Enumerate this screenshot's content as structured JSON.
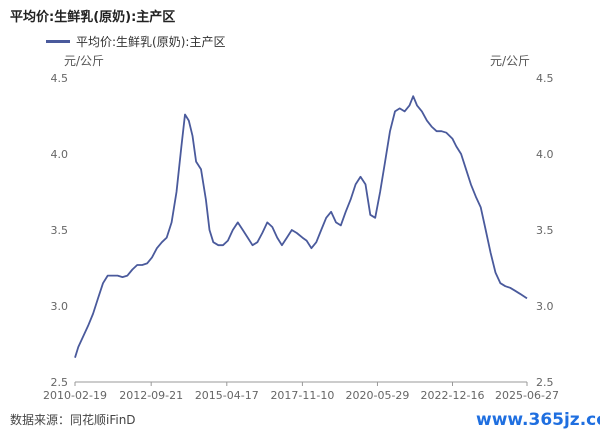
{
  "chart_data": {
    "type": "line",
    "title": "平均价:生鲜乳(原奶):主产区",
    "unit_left": "元/公斤",
    "unit_right": "元/公斤",
    "ylim": [
      2.5,
      4.5
    ],
    "yticks": [
      "2.5",
      "3.0",
      "3.5",
      "4.0",
      "4.5"
    ],
    "xlim": [
      "2010-02-19",
      "2025-06-27"
    ],
    "xticks": [
      "2010-02-19",
      "2012-09-21",
      "2015-04-17",
      "2017-11-10",
      "2020-05-29",
      "2022-12-16",
      "2025-06-27"
    ],
    "grid": false,
    "legend_position": "top-left",
    "source": "数据来源：同花顺iFinD",
    "colors": {
      "line": "#4a5a9c"
    },
    "series": [
      {
        "name": "平均价:生鲜乳(原奶):主产区",
        "points": [
          [
            "2010-02-19",
            2.66
          ],
          [
            "2010-04-01",
            2.73
          ],
          [
            "2010-06-01",
            2.8
          ],
          [
            "2010-08-01",
            2.87
          ],
          [
            "2010-10-01",
            2.95
          ],
          [
            "2010-12-01",
            3.05
          ],
          [
            "2011-02-01",
            3.15
          ],
          [
            "2011-04-01",
            3.2
          ],
          [
            "2011-06-01",
            3.2
          ],
          [
            "2011-08-01",
            3.2
          ],
          [
            "2011-10-01",
            3.19
          ],
          [
            "2011-12-01",
            3.2
          ],
          [
            "2012-02-01",
            3.24
          ],
          [
            "2012-04-01",
            3.27
          ],
          [
            "2012-06-01",
            3.27
          ],
          [
            "2012-08-01",
            3.28
          ],
          [
            "2012-10-01",
            3.32
          ],
          [
            "2012-12-01",
            3.38
          ],
          [
            "2013-02-01",
            3.42
          ],
          [
            "2013-04-01",
            3.45
          ],
          [
            "2013-06-01",
            3.55
          ],
          [
            "2013-08-01",
            3.75
          ],
          [
            "2013-10-01",
            4.05
          ],
          [
            "2013-11-15",
            4.26
          ],
          [
            "2014-01-01",
            4.22
          ],
          [
            "2014-02-15",
            4.12
          ],
          [
            "2014-04-01",
            3.95
          ],
          [
            "2014-06-01",
            3.9
          ],
          [
            "2014-08-01",
            3.7
          ],
          [
            "2014-09-15",
            3.5
          ],
          [
            "2014-11-01",
            3.42
          ],
          [
            "2015-01-01",
            3.4
          ],
          [
            "2015-03-01",
            3.4
          ],
          [
            "2015-05-01",
            3.43
          ],
          [
            "2015-07-01",
            3.5
          ],
          [
            "2015-09-01",
            3.55
          ],
          [
            "2015-11-01",
            3.5
          ],
          [
            "2016-01-01",
            3.45
          ],
          [
            "2016-03-01",
            3.4
          ],
          [
            "2016-05-01",
            3.42
          ],
          [
            "2016-07-01",
            3.48
          ],
          [
            "2016-09-01",
            3.55
          ],
          [
            "2016-11-01",
            3.52
          ],
          [
            "2017-01-01",
            3.45
          ],
          [
            "2017-03-01",
            3.4
          ],
          [
            "2017-05-01",
            3.45
          ],
          [
            "2017-07-01",
            3.5
          ],
          [
            "2017-09-01",
            3.48
          ],
          [
            "2017-11-10",
            3.45
          ],
          [
            "2018-01-01",
            3.43
          ],
          [
            "2018-03-01",
            3.38
          ],
          [
            "2018-05-01",
            3.42
          ],
          [
            "2018-07-01",
            3.5
          ],
          [
            "2018-09-01",
            3.58
          ],
          [
            "2018-11-01",
            3.62
          ],
          [
            "2019-01-01",
            3.55
          ],
          [
            "2019-03-01",
            3.53
          ],
          [
            "2019-05-01",
            3.62
          ],
          [
            "2019-07-01",
            3.7
          ],
          [
            "2019-09-01",
            3.8
          ],
          [
            "2019-11-01",
            3.85
          ],
          [
            "2020-01-01",
            3.8
          ],
          [
            "2020-03-01",
            3.6
          ],
          [
            "2020-05-01",
            3.58
          ],
          [
            "2020-07-01",
            3.75
          ],
          [
            "2020-09-01",
            3.95
          ],
          [
            "2020-11-01",
            4.15
          ],
          [
            "2021-01-01",
            4.28
          ],
          [
            "2021-03-01",
            4.3
          ],
          [
            "2021-05-01",
            4.28
          ],
          [
            "2021-07-01",
            4.32
          ],
          [
            "2021-08-15",
            4.38
          ],
          [
            "2021-10-01",
            4.32
          ],
          [
            "2021-12-01",
            4.28
          ],
          [
            "2022-02-01",
            4.22
          ],
          [
            "2022-04-01",
            4.18
          ],
          [
            "2022-06-01",
            4.15
          ],
          [
            "2022-08-01",
            4.15
          ],
          [
            "2022-10-01",
            4.14
          ],
          [
            "2022-12-16",
            4.1
          ],
          [
            "2023-02-01",
            4.05
          ],
          [
            "2023-04-01",
            4.0
          ],
          [
            "2023-06-01",
            3.9
          ],
          [
            "2023-08-01",
            3.8
          ],
          [
            "2023-10-01",
            3.72
          ],
          [
            "2023-12-01",
            3.65
          ],
          [
            "2024-02-01",
            3.5
          ],
          [
            "2024-04-01",
            3.35
          ],
          [
            "2024-06-01",
            3.22
          ],
          [
            "2024-08-01",
            3.15
          ],
          [
            "2024-10-01",
            3.13
          ],
          [
            "2024-12-01",
            3.12
          ],
          [
            "2025-02-01",
            3.1
          ],
          [
            "2025-04-01",
            3.08
          ],
          [
            "2025-06-27",
            3.05
          ]
        ]
      }
    ]
  }
}
